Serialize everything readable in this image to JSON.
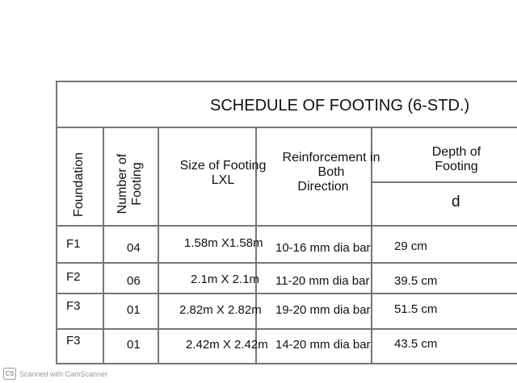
{
  "title": "SCHEDULE OF FOOTING (6-STD.)",
  "headers": {
    "foundation": "Foundation",
    "number_line1": "Number of",
    "number_line2": "Footing",
    "size_line1": "Size of Footing",
    "size_line2": "LXL",
    "reinf_line1": "Reinforcement in",
    "reinf_line2": "Both",
    "reinf_line3": "Direction",
    "depth_line1": "Depth of",
    "depth_line2": "Footing",
    "depth_symbol": "d"
  },
  "rows": [
    {
      "foundation": "F1",
      "number": "04",
      "size": "1.58m X1.58m",
      "reinforcement": "10-16 mm dia bar",
      "depth": "29 cm"
    },
    {
      "foundation": "F2",
      "number": "06",
      "size": "2.1m X 2.1m",
      "reinforcement": "11-20 mm dia bar",
      "depth": "39.5 cm"
    },
    {
      "foundation": "F3",
      "number": "01",
      "size": "2.82m X 2.82m",
      "reinforcement": "19-20 mm dia bar",
      "depth": "51.5 cm"
    },
    {
      "foundation": "F3",
      "number": "01",
      "size": "2.42m X 2.42m",
      "reinforcement": "14-20 mm dia bar",
      "depth": "43.5 cm"
    }
  ],
  "watermark": {
    "logo": "CS",
    "text": "Scanned with CamScanner"
  }
}
